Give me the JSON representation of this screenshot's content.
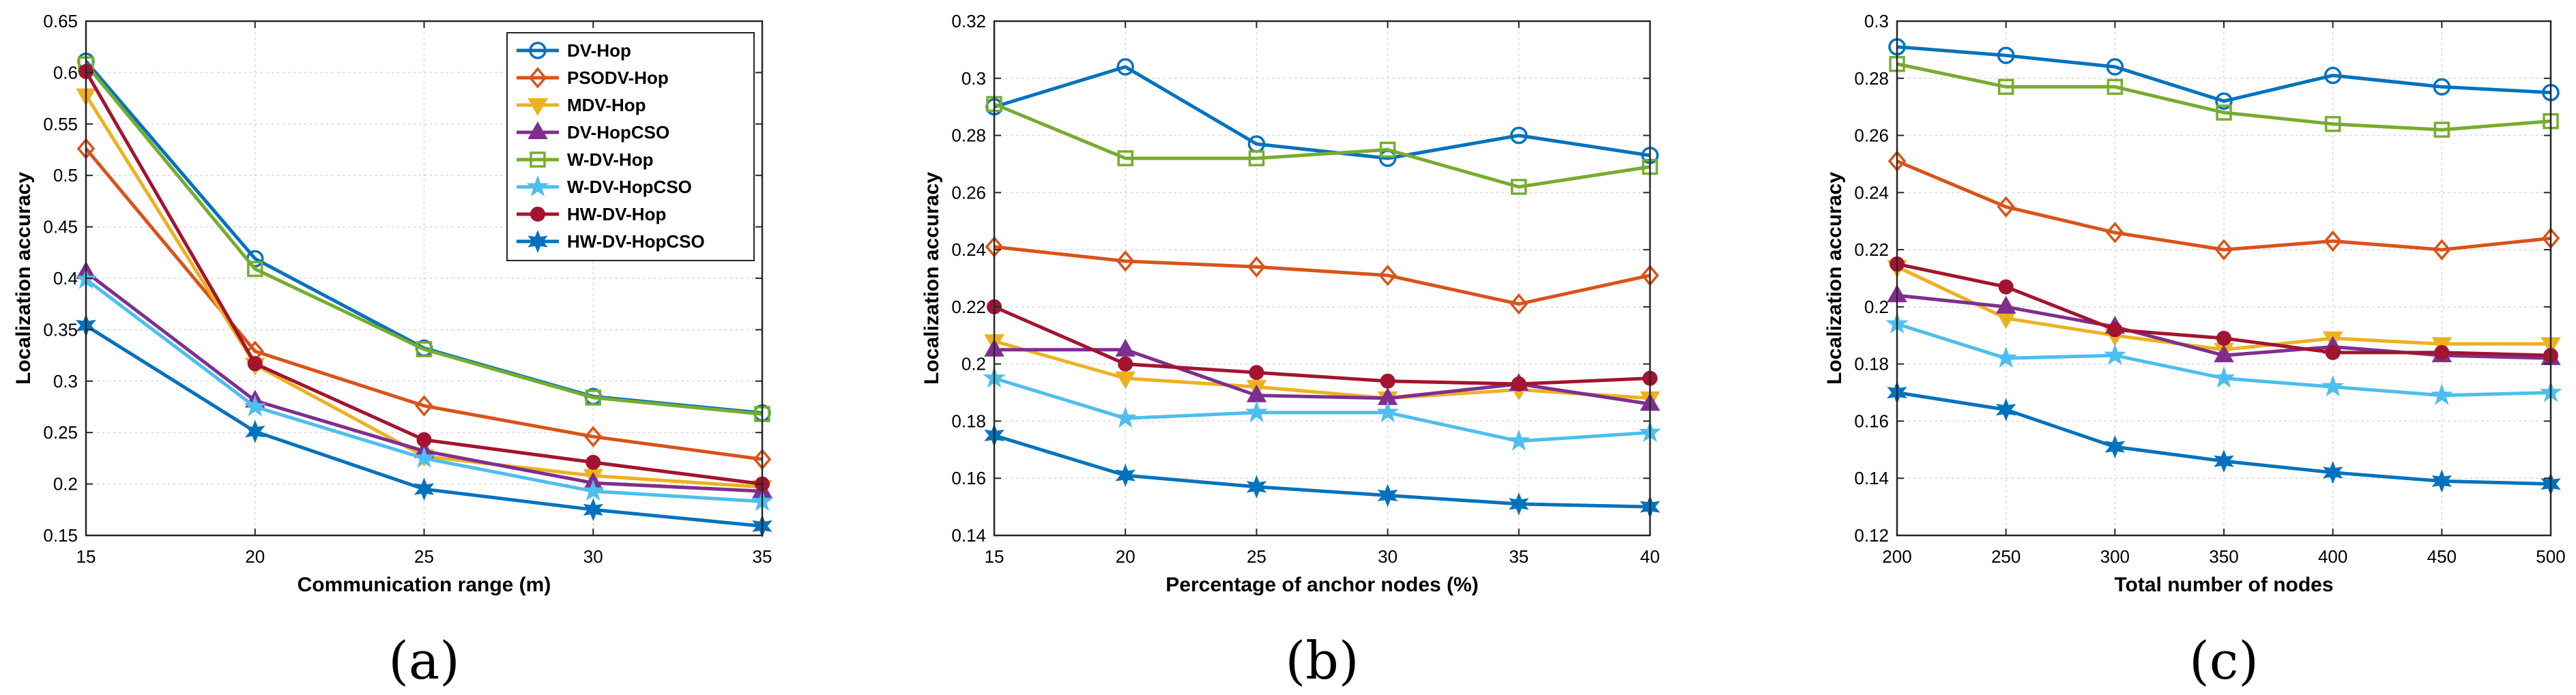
{
  "series_styles": [
    {
      "name": "DV-Hop",
      "color": "#0072BD",
      "marker": "circle"
    },
    {
      "name": "PSODV-Hop",
      "color": "#D95319",
      "marker": "diamond"
    },
    {
      "name": "MDV-Hop",
      "color": "#EDB120",
      "marker": "triangle-down"
    },
    {
      "name": "DV-HopCSO",
      "color": "#7E2F8E",
      "marker": "triangle-up"
    },
    {
      "name": "W-DV-Hop",
      "color": "#77AC30",
      "marker": "square"
    },
    {
      "name": "W-DV-HopCSO",
      "color": "#4DBEEE",
      "marker": "star"
    },
    {
      "name": "HW-DV-Hop",
      "color": "#A2142F",
      "marker": "dot"
    },
    {
      "name": "HW-DV-HopCSO",
      "color": "#0072BD",
      "marker": "hexagram"
    }
  ],
  "chart_data": [
    {
      "type": "line",
      "label": "(a)",
      "xlabel": "Communication range (m)",
      "ylabel": "Localization accuracy",
      "x": [
        15,
        20,
        25,
        30,
        35
      ],
      "xlim": [
        15,
        35
      ],
      "ylim": [
        0.15,
        0.65
      ],
      "xticks": [
        15,
        20,
        25,
        30,
        35
      ],
      "yticks": [
        0.15,
        0.2,
        0.25,
        0.3,
        0.35,
        0.4,
        0.45,
        0.5,
        0.55,
        0.6,
        0.65
      ],
      "ytick_labels": [
        "0.15",
        "0.2",
        "0.25",
        "0.3",
        "0.35",
        "0.4",
        "0.45",
        "0.5",
        "0.55",
        "0.6",
        "0.65"
      ],
      "legend": "top-right",
      "series": [
        {
          "name": "DV-Hop",
          "values": [
            0.611,
            0.419,
            0.332,
            0.285,
            0.269
          ]
        },
        {
          "name": "PSODV-Hop",
          "values": [
            0.526,
            0.329,
            0.276,
            0.246,
            0.224
          ]
        },
        {
          "name": "MDV-Hop",
          "values": [
            0.578,
            0.316,
            0.227,
            0.208,
            0.197
          ]
        },
        {
          "name": "DV-HopCSO",
          "values": [
            0.406,
            0.281,
            0.232,
            0.201,
            0.193
          ]
        },
        {
          "name": "W-DV-Hop",
          "values": [
            0.608,
            0.409,
            0.331,
            0.284,
            0.268
          ]
        },
        {
          "name": "W-DV-HopCSO",
          "values": [
            0.399,
            0.275,
            0.225,
            0.193,
            0.183
          ]
        },
        {
          "name": "HW-DV-Hop",
          "values": [
            0.601,
            0.317,
            0.243,
            0.221,
            0.2
          ]
        },
        {
          "name": "HW-DV-HopCSO",
          "values": [
            0.354,
            0.251,
            0.195,
            0.175,
            0.159
          ]
        }
      ]
    },
    {
      "type": "line",
      "label": "(b)",
      "xlabel": "Percentage of anchor nodes (%)",
      "ylabel": "Localization accuracy",
      "x": [
        15,
        20,
        25,
        30,
        35,
        40
      ],
      "xlim": [
        15,
        40
      ],
      "ylim": [
        0.14,
        0.32
      ],
      "xticks": [
        15,
        20,
        25,
        30,
        35,
        40
      ],
      "yticks": [
        0.14,
        0.16,
        0.18,
        0.2,
        0.22,
        0.24,
        0.26,
        0.28,
        0.3,
        0.32
      ],
      "ytick_labels": [
        "0.14",
        "0.16",
        "0.18",
        "0.2",
        "0.22",
        "0.24",
        "0.26",
        "0.28",
        "0.3",
        "0.32"
      ],
      "series": [
        {
          "name": "DV-Hop",
          "values": [
            0.29,
            0.304,
            0.277,
            0.272,
            0.28,
            0.273
          ]
        },
        {
          "name": "PSODV-Hop",
          "values": [
            0.241,
            0.236,
            0.234,
            0.231,
            0.221,
            0.231
          ]
        },
        {
          "name": "MDV-Hop",
          "values": [
            0.208,
            0.195,
            0.192,
            0.188,
            0.191,
            0.188
          ]
        },
        {
          "name": "DV-HopCSO",
          "values": [
            0.205,
            0.205,
            0.189,
            0.188,
            0.193,
            0.186
          ]
        },
        {
          "name": "W-DV-Hop",
          "values": [
            0.291,
            0.272,
            0.272,
            0.275,
            0.262,
            0.269
          ]
        },
        {
          "name": "W-DV-HopCSO",
          "values": [
            0.195,
            0.181,
            0.183,
            0.183,
            0.173,
            0.176
          ]
        },
        {
          "name": "HW-DV-Hop",
          "values": [
            0.22,
            0.2,
            0.197,
            0.194,
            0.193,
            0.195
          ]
        },
        {
          "name": "HW-DV-HopCSO",
          "values": [
            0.175,
            0.161,
            0.157,
            0.154,
            0.151,
            0.15
          ]
        }
      ]
    },
    {
      "type": "line",
      "label": "(c)",
      "xlabel": "Total number of nodes",
      "ylabel": "Localization accuracy",
      "x": [
        200,
        250,
        300,
        350,
        400,
        450,
        500
      ],
      "xlim": [
        200,
        500
      ],
      "ylim": [
        0.12,
        0.3
      ],
      "xticks": [
        200,
        250,
        300,
        350,
        400,
        450,
        500
      ],
      "yticks": [
        0.12,
        0.14,
        0.16,
        0.18,
        0.2,
        0.22,
        0.24,
        0.26,
        0.28,
        0.3
      ],
      "ytick_labels": [
        "0.12",
        "0.14",
        "0.16",
        "0.18",
        "0.2",
        "0.22",
        "0.24",
        "0.26",
        "0.28",
        "0.3"
      ],
      "series": [
        {
          "name": "DV-Hop",
          "values": [
            0.291,
            0.288,
            0.284,
            0.272,
            0.281,
            0.277,
            0.275
          ]
        },
        {
          "name": "PSODV-Hop",
          "values": [
            0.251,
            0.235,
            0.226,
            0.22,
            0.223,
            0.22,
            0.224
          ]
        },
        {
          "name": "MDV-Hop",
          "values": [
            0.214,
            0.196,
            0.19,
            0.185,
            0.189,
            0.187,
            0.187
          ]
        },
        {
          "name": "DV-HopCSO",
          "values": [
            0.204,
            0.2,
            0.193,
            0.183,
            0.186,
            0.183,
            0.182
          ]
        },
        {
          "name": "W-DV-Hop",
          "values": [
            0.285,
            0.277,
            0.277,
            0.268,
            0.264,
            0.262,
            0.265
          ]
        },
        {
          "name": "W-DV-HopCSO",
          "values": [
            0.194,
            0.182,
            0.183,
            0.175,
            0.172,
            0.169,
            0.17
          ]
        },
        {
          "name": "HW-DV-Hop",
          "values": [
            0.215,
            0.207,
            0.192,
            0.189,
            0.184,
            0.184,
            0.183
          ]
        },
        {
          "name": "HW-DV-HopCSO",
          "values": [
            0.17,
            0.164,
            0.151,
            0.146,
            0.142,
            0.139,
            0.138
          ]
        }
      ]
    }
  ]
}
